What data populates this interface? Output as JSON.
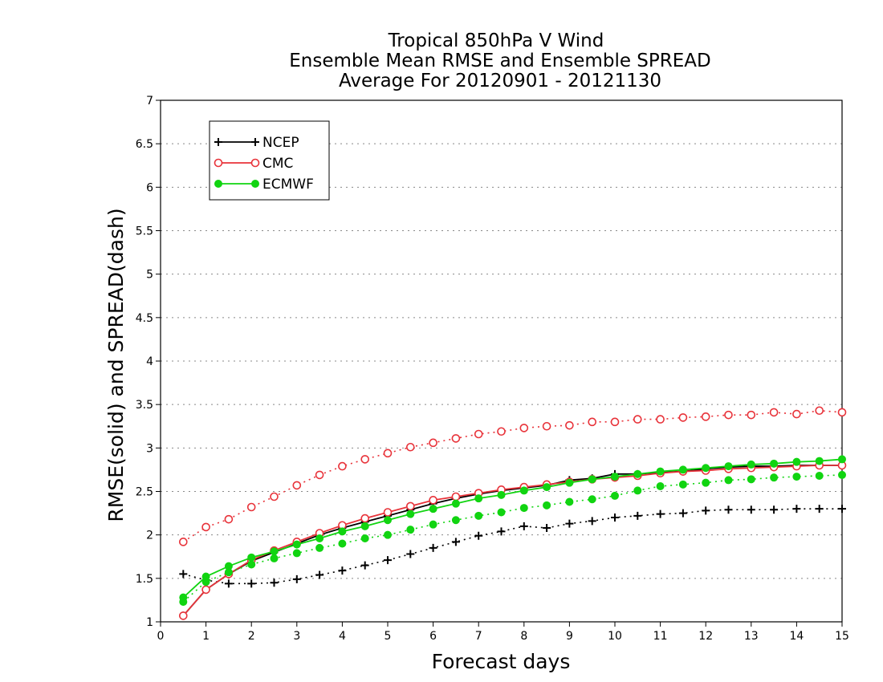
{
  "chart_data": {
    "type": "line",
    "title": [
      "Tropical 850hPa V Wind",
      "Ensemble Mean RMSE and Ensemble SPREAD",
      "Average For 20120901 - 20121130"
    ],
    "xlabel": "Forecast days",
    "ylabel": "RMSE(solid) and SPREAD(dash)",
    "xlim": [
      0,
      15
    ],
    "ylim": [
      1,
      7
    ],
    "xticks": [
      "0",
      "1",
      "2",
      "3",
      "4",
      "5",
      "6",
      "7",
      "8",
      "9",
      "10",
      "11",
      "12",
      "13",
      "14",
      "15"
    ],
    "yticks": [
      "1",
      "1.5",
      "2",
      "2.5",
      "3",
      "3.5",
      "4",
      "4.5",
      "5",
      "5.5",
      "6",
      "6.5",
      "7"
    ],
    "grid": true,
    "legend_position": "top-left",
    "x": [
      0.5,
      1,
      1.5,
      2,
      2.5,
      3,
      3.5,
      4,
      4.5,
      5,
      5.5,
      6,
      6.5,
      7,
      7.5,
      8,
      8.5,
      9,
      9.5,
      10,
      10.5,
      11,
      11.5,
      12,
      12.5,
      13,
      13.5,
      14,
      14.5,
      15
    ],
    "series": [
      {
        "name": "NCEP",
        "color": "#000000",
        "marker": "plus",
        "rmse": [
          1.07,
          1.37,
          1.55,
          1.7,
          1.8,
          1.9,
          2.0,
          2.08,
          2.15,
          2.22,
          2.29,
          2.36,
          2.42,
          2.47,
          2.51,
          2.54,
          2.57,
          2.63,
          2.65,
          2.7,
          2.7,
          2.72,
          2.73,
          2.76,
          2.78,
          2.79,
          2.79,
          2.8,
          2.8,
          2.8
        ],
        "spread": [
          1.55,
          1.48,
          1.44,
          1.44,
          1.45,
          1.49,
          1.54,
          1.59,
          1.65,
          1.71,
          1.78,
          1.85,
          1.92,
          1.99,
          2.04,
          2.1,
          2.08,
          2.13,
          2.16,
          2.2,
          2.22,
          2.24,
          2.25,
          2.28,
          2.29,
          2.29,
          2.29,
          2.3,
          2.3,
          2.3
        ]
      },
      {
        "name": "CMC",
        "color": "#e8333a",
        "marker": "open-circle",
        "rmse": [
          1.07,
          1.37,
          1.55,
          1.71,
          1.82,
          1.92,
          2.02,
          2.11,
          2.19,
          2.26,
          2.33,
          2.4,
          2.44,
          2.48,
          2.52,
          2.55,
          2.58,
          2.61,
          2.64,
          2.66,
          2.68,
          2.71,
          2.73,
          2.74,
          2.76,
          2.77,
          2.78,
          2.79,
          2.8,
          2.8
        ],
        "spread": [
          1.92,
          2.09,
          2.18,
          2.32,
          2.44,
          2.57,
          2.69,
          2.79,
          2.87,
          2.94,
          3.01,
          3.06,
          3.11,
          3.16,
          3.19,
          3.23,
          3.25,
          3.26,
          3.3,
          3.3,
          3.33,
          3.33,
          3.35,
          3.36,
          3.38,
          3.38,
          3.41,
          3.39,
          3.43,
          3.41
        ]
      },
      {
        "name": "ECMWF",
        "color": "#11d411",
        "marker": "filled-circle",
        "rmse": [
          1.28,
          1.52,
          1.64,
          1.74,
          1.81,
          1.89,
          1.96,
          2.04,
          2.1,
          2.17,
          2.24,
          2.3,
          2.36,
          2.42,
          2.46,
          2.51,
          2.55,
          2.6,
          2.64,
          2.67,
          2.7,
          2.73,
          2.75,
          2.77,
          2.79,
          2.81,
          2.82,
          2.84,
          2.85,
          2.87
        ],
        "spread": [
          1.23,
          1.46,
          1.57,
          1.66,
          1.73,
          1.79,
          1.85,
          1.9,
          1.96,
          2.0,
          2.06,
          2.12,
          2.17,
          2.22,
          2.26,
          2.31,
          2.34,
          2.38,
          2.41,
          2.45,
          2.51,
          2.56,
          2.58,
          2.6,
          2.63,
          2.64,
          2.66,
          2.67,
          2.68,
          2.69
        ]
      }
    ]
  }
}
